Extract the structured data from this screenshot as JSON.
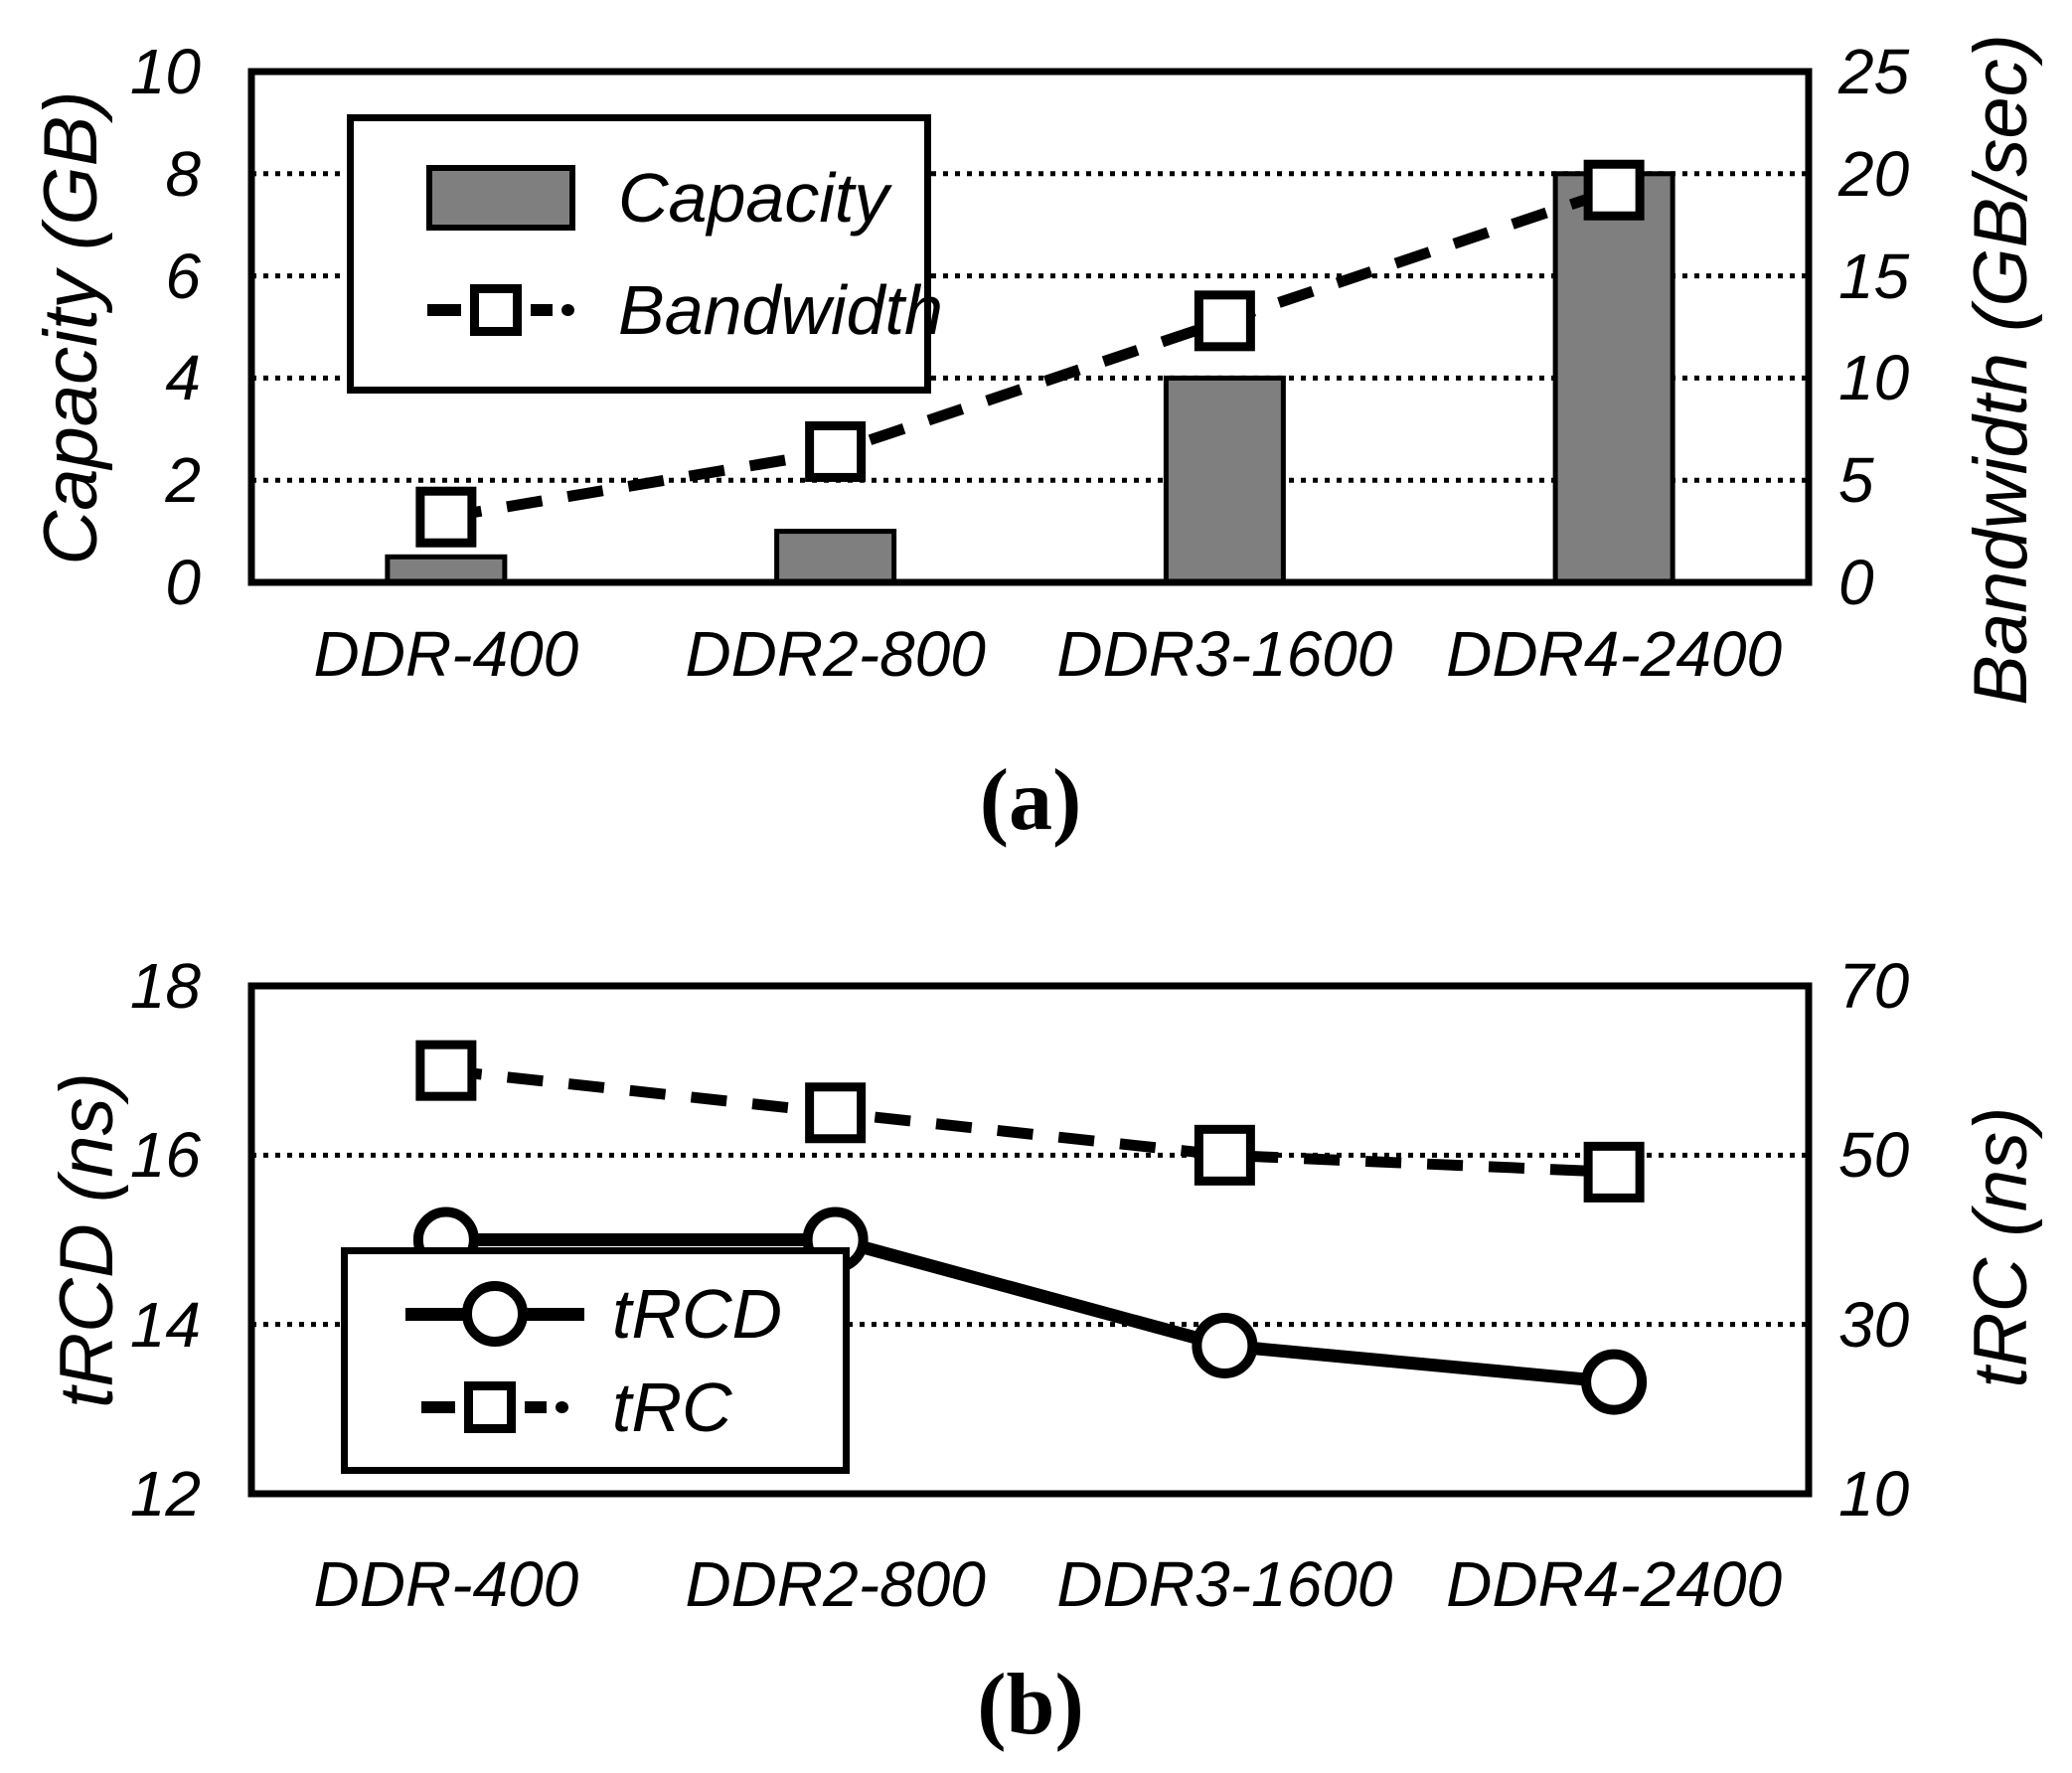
{
  "colors": {
    "bar_fill": "#7F7F7F",
    "line": "#000000",
    "marker_fill": "#FFFFFF",
    "grid": "#000000"
  },
  "chart_data": [
    {
      "id": "a",
      "type": "bar",
      "caption": "(a)",
      "categories": [
        "DDR-400",
        "DDR2-800",
        "DDR3-1600",
        "DDR4-2400"
      ],
      "left_axis": {
        "label": "Capacity (GB)",
        "min": 0,
        "max": 10,
        "ticks": [
          0,
          2,
          4,
          6,
          8,
          10
        ]
      },
      "right_axis": {
        "label": "Bandwidth (GB/sec)",
        "min": 0,
        "max": 25,
        "ticks": [
          0,
          5,
          10,
          15,
          20,
          25
        ]
      },
      "gridlines_left_values": [
        2,
        4,
        6,
        8
      ],
      "grid": "dotted",
      "legend_position": "top-left-inside",
      "series": [
        {
          "name": "Capacity",
          "type": "bar",
          "axis": "left",
          "values": [
            0.5,
            1,
            4,
            8
          ]
        },
        {
          "name": "Bandwidth",
          "type": "line",
          "style": "dashed",
          "marker": "square",
          "axis": "right",
          "values": [
            3.2,
            6.4,
            12.8,
            19.2
          ]
        }
      ]
    },
    {
      "id": "b",
      "type": "line",
      "caption": "(b)",
      "categories": [
        "DDR-400",
        "DDR2-800",
        "DDR3-1600",
        "DDR4-2400"
      ],
      "left_axis": {
        "label": "tRCD (ns)",
        "min": 12,
        "max": 18,
        "ticks": [
          12,
          14,
          16,
          18
        ]
      },
      "right_axis": {
        "label": "tRC (ns)",
        "min": 10,
        "max": 70,
        "ticks": [
          10,
          30,
          50,
          70
        ]
      },
      "gridlines_left_values": [
        14,
        16
      ],
      "grid": "dotted",
      "legend_position": "bottom-left-inside",
      "series": [
        {
          "name": "tRCD",
          "type": "line",
          "style": "solid",
          "marker": "circle",
          "axis": "left",
          "values": [
            15,
            15,
            13.75,
            13.32
          ]
        },
        {
          "name": "tRC",
          "type": "line",
          "style": "dashed",
          "marker": "square",
          "axis": "right",
          "values": [
            60,
            55,
            50,
            48
          ]
        }
      ]
    }
  ]
}
